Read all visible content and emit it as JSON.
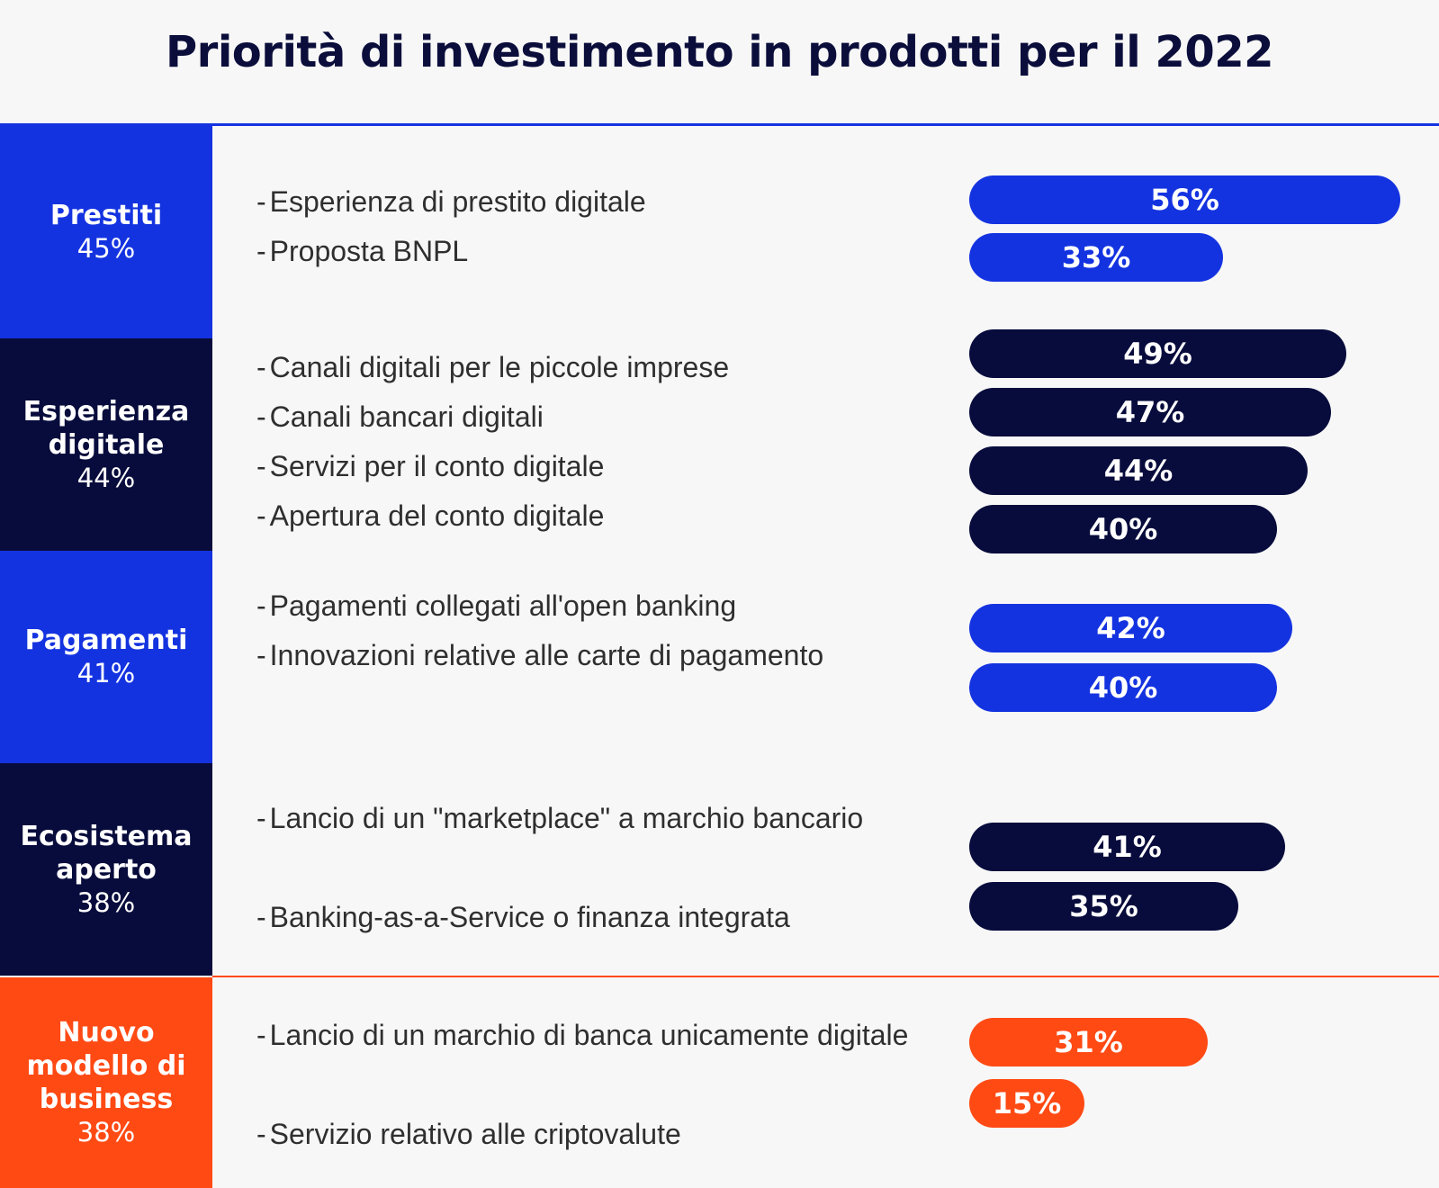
{
  "title": "Priorità di investimento in prodotti per il 2022",
  "colors": {
    "blue": "#1433e0",
    "navy": "#070c3c",
    "orange": "#ff4a14",
    "background": "#f7f7f7",
    "text": "#2f2f2f"
  },
  "categories": [
    {
      "name": "Prestiti",
      "percent": "45%",
      "color": "#1433e0"
    },
    {
      "name": "Esperienza digitale",
      "percent": "44%",
      "color": "#070c3c"
    },
    {
      "name": "Pagamenti",
      "percent": "41%",
      "color": "#1433e0"
    },
    {
      "name": "Ecosistema aperto",
      "percent": "38%",
      "color": "#070c3c"
    },
    {
      "name": "Nuovo modello di business",
      "percent": "38%",
      "color": "#ff4a14"
    }
  ],
  "chart_data": {
    "type": "bar",
    "orientation": "horizontal",
    "title": "Priorità di investimento in prodotti per il 2022",
    "xlim": [
      0,
      60
    ],
    "groups": [
      {
        "category": "Prestiti",
        "items": [
          {
            "label": "Esperienza di prestito digitale",
            "value": 56,
            "value_label": "56%"
          },
          {
            "label": "Proposta BNPL",
            "value": 33,
            "value_label": "33%"
          }
        ]
      },
      {
        "category": "Esperienza digitale",
        "items": [
          {
            "label": "Canali digitali per le piccole imprese",
            "value": 49,
            "value_label": "49%"
          },
          {
            "label": "Canali bancari digitali",
            "value": 47,
            "value_label": "47%"
          },
          {
            "label": "Servizi per il conto digitale",
            "value": 44,
            "value_label": "44%"
          },
          {
            "label": "Apertura del conto digitale",
            "value": 40,
            "value_label": "40%"
          }
        ]
      },
      {
        "category": "Pagamenti",
        "items": [
          {
            "label": "Pagamenti collegati all'open banking",
            "value": 42,
            "value_label": "42%"
          },
          {
            "label": "Innovazioni relative alle carte di pagamento",
            "value": 40,
            "value_label": "40%"
          }
        ]
      },
      {
        "category": "Ecosistema aperto",
        "items": [
          {
            "label": "Lancio di un \"marketplace\" a marchio bancario",
            "value": 41,
            "value_label": "41%"
          },
          {
            "label": "Banking-as-a-Service o finanza integrata",
            "value": 35,
            "value_label": "35%"
          }
        ]
      },
      {
        "category": "Nuovo modello di business",
        "items": [
          {
            "label": "Lancio di un marchio di banca unicamente digitale",
            "value": 31,
            "value_label": "31%"
          },
          {
            "label": "Servizio relativo alle criptovalute",
            "value": 15,
            "value_label": "15%"
          }
        ]
      }
    ]
  }
}
